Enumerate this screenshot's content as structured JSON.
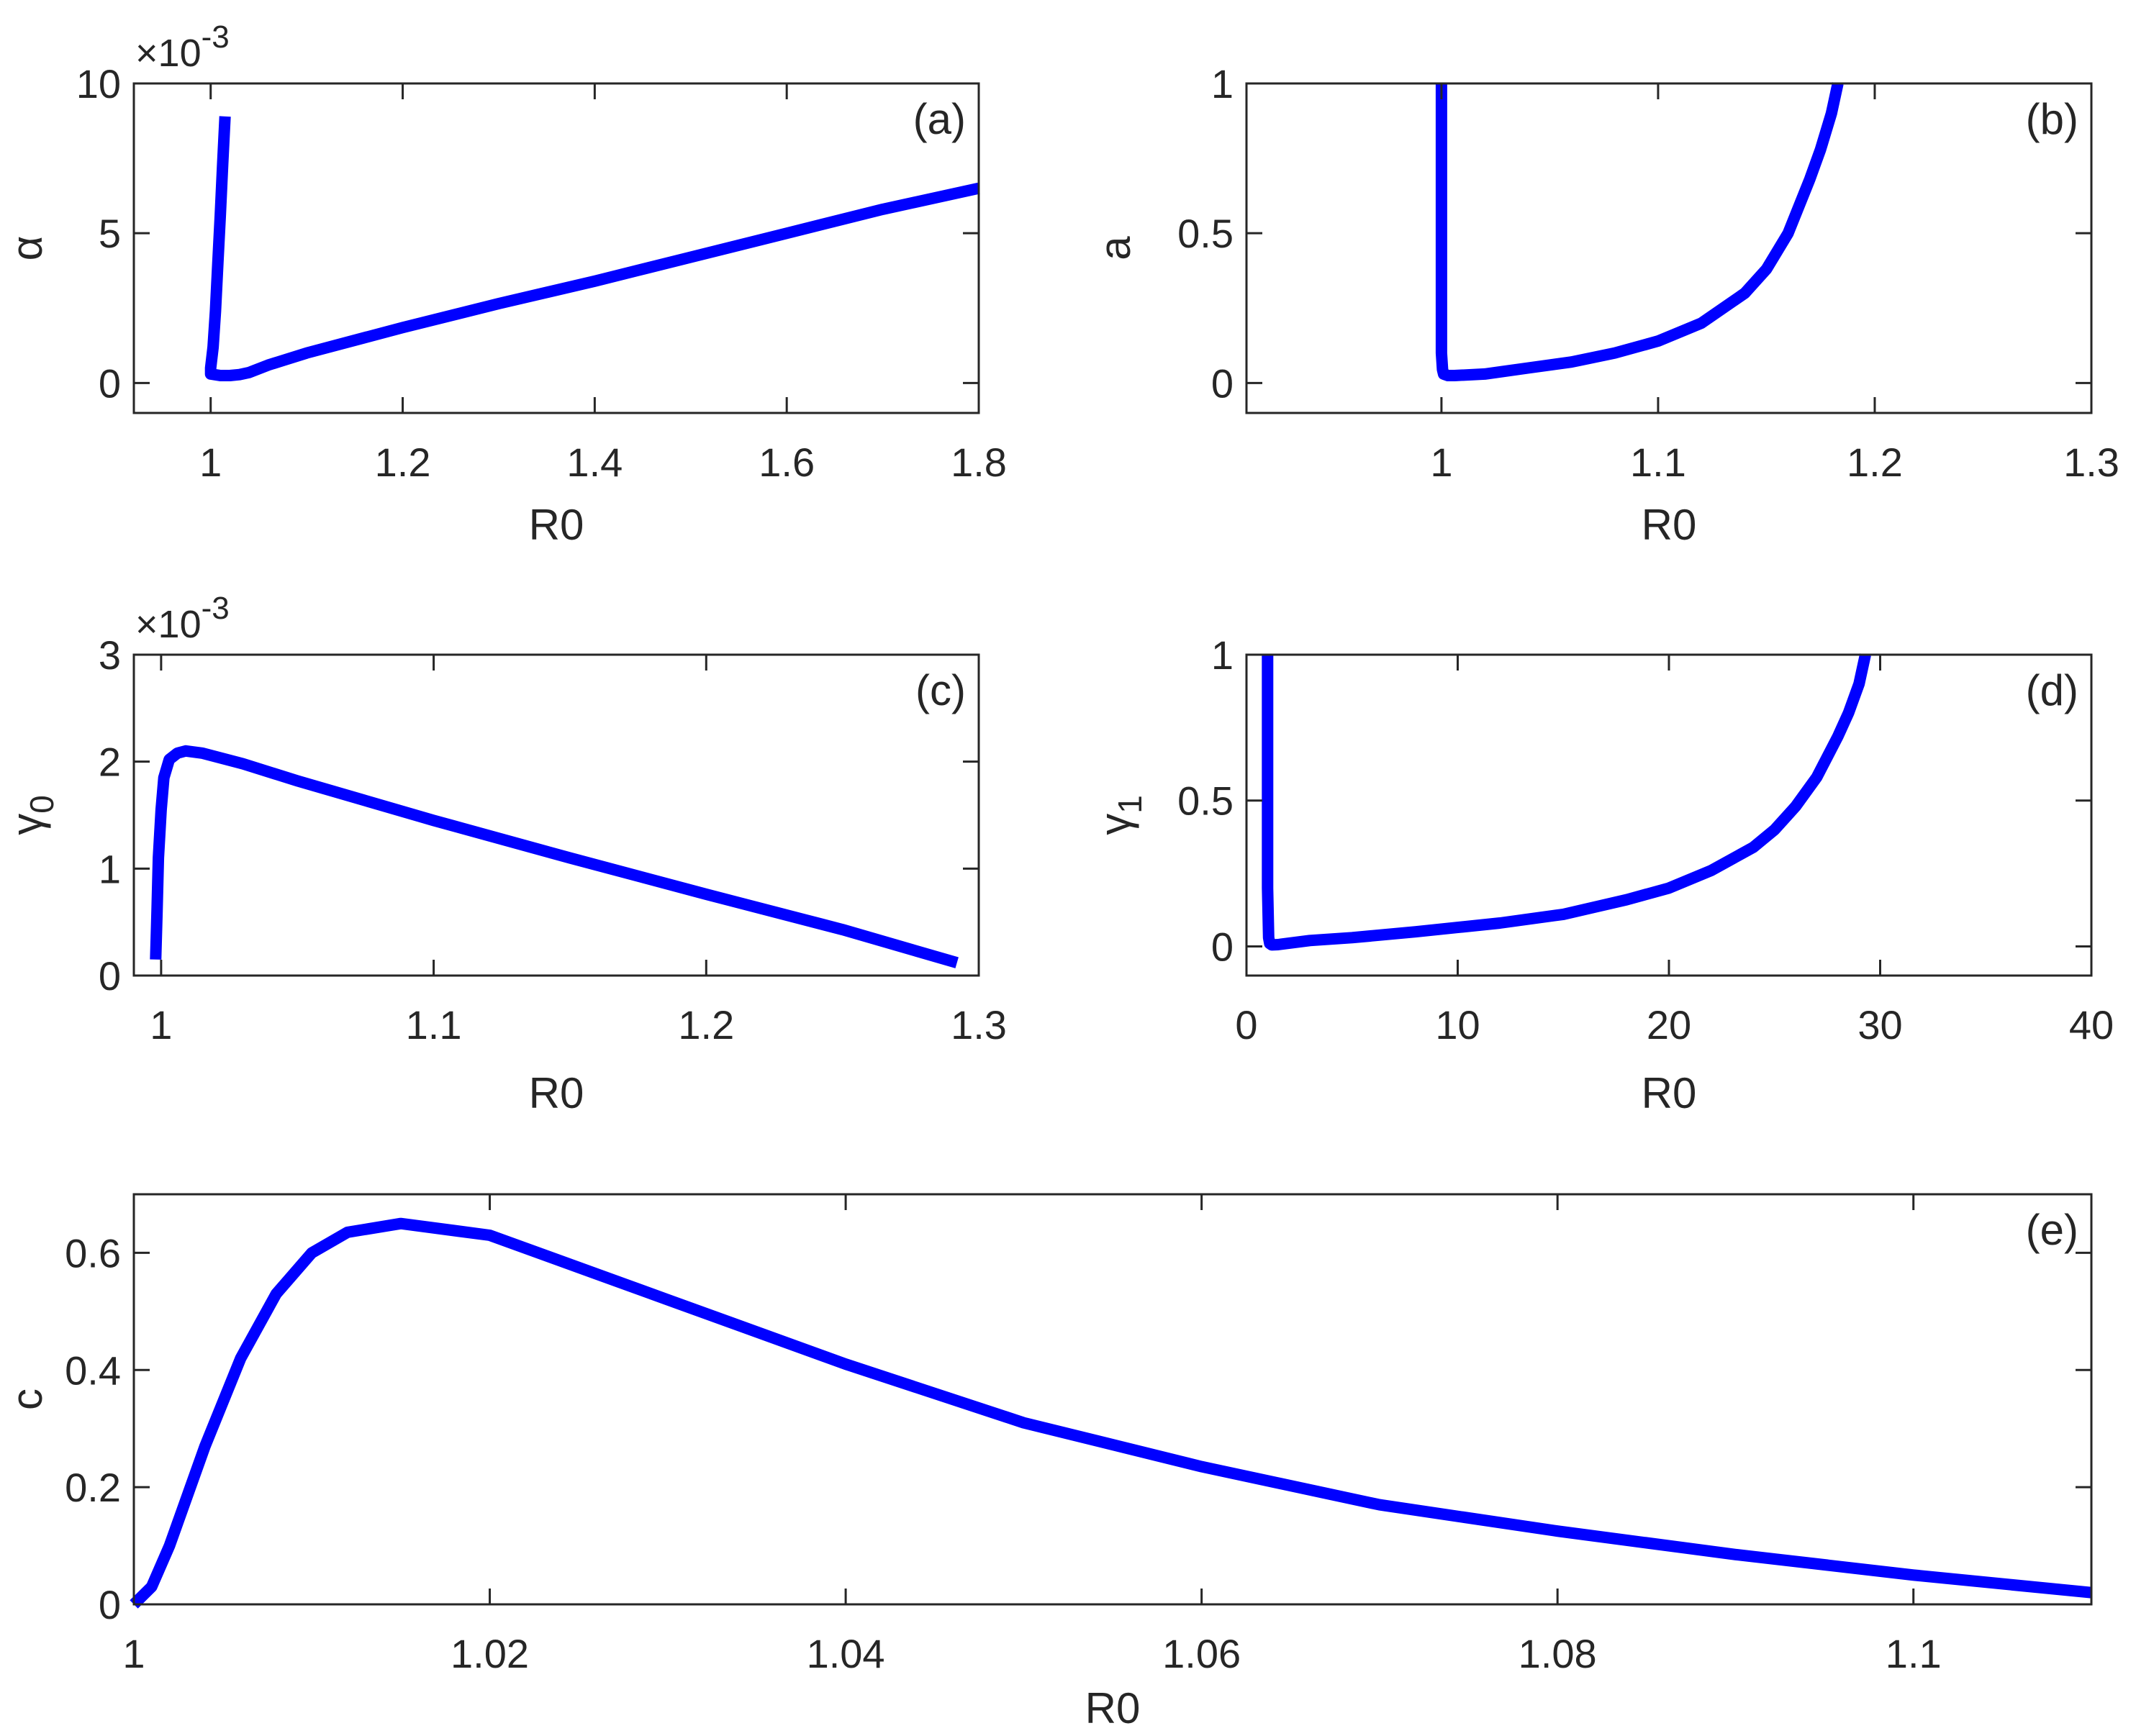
{
  "chart_data": [
    {
      "id": "a",
      "type": "line",
      "panel_label": "(a)",
      "xlabel": "R0",
      "ylabel": "α",
      "ylabel_sub": "",
      "y_exponent_label": "×10",
      "y_exponent_power": "-3",
      "xlim": [
        0.92,
        1.8
      ],
      "ylim": [
        -1,
        10
      ],
      "xticks": [
        1,
        1.2,
        1.4,
        1.6,
        1.8
      ],
      "xtick_labels": [
        "1",
        "1.2",
        "1.4",
        "1.6",
        "1.8"
      ],
      "yticks": [
        0,
        5,
        10
      ],
      "ytick_labels": [
        "0",
        "5",
        "10"
      ],
      "series": [
        {
          "x": [
            1.015,
            1.0125,
            1.01,
            1.0075,
            1.005,
            1.0025,
            1.0,
            1.0,
            1.01,
            1.02,
            1.03,
            1.04,
            1.06,
            1.1,
            1.2,
            1.3,
            1.4,
            1.5,
            1.6,
            1.7,
            1.8
          ],
          "y": [
            8.9,
            7.3,
            5.6,
            4.0,
            2.4,
            1.2,
            0.5,
            0.3,
            0.25,
            0.25,
            0.28,
            0.35,
            0.6,
            1.0,
            1.85,
            2.65,
            3.4,
            4.2,
            5.0,
            5.8,
            6.5
          ]
        }
      ]
    },
    {
      "id": "b",
      "type": "line",
      "panel_label": "(b)",
      "xlabel": "R0",
      "ylabel": "a",
      "ylabel_sub": "",
      "y_exponent_label": "",
      "y_exponent_power": "",
      "xlim": [
        0.91,
        1.3
      ],
      "ylim": [
        -0.1,
        1
      ],
      "xticks": [
        1,
        1.1,
        1.2,
        1.3
      ],
      "xtick_labels": [
        "1",
        "1.1",
        "1.2",
        "1.3"
      ],
      "yticks": [
        0,
        0.5,
        1
      ],
      "ytick_labels": [
        "0",
        "0.5",
        "1"
      ],
      "series": [
        {
          "x": [
            1.0,
            1.0,
            1.0,
            1.0,
            1.0005,
            1.001,
            1.003,
            1.006,
            1.02,
            1.04,
            1.06,
            1.08,
            1.1,
            1.12,
            1.14,
            1.15,
            1.16,
            1.17,
            1.175,
            1.18,
            1.183
          ],
          "y": [
            1.0,
            0.7,
            0.4,
            0.1,
            0.045,
            0.03,
            0.025,
            0.025,
            0.03,
            0.05,
            0.07,
            0.1,
            0.14,
            0.2,
            0.3,
            0.38,
            0.5,
            0.68,
            0.78,
            0.9,
            1.0
          ]
        }
      ]
    },
    {
      "id": "c",
      "type": "line",
      "panel_label": "(c)",
      "xlabel": "R0",
      "ylabel": "γ",
      "ylabel_sub": "0",
      "y_exponent_label": "×10",
      "y_exponent_power": "-3",
      "xlim": [
        0.99,
        1.3
      ],
      "ylim": [
        0,
        3
      ],
      "xticks": [
        1,
        1.1,
        1.2,
        1.3
      ],
      "xtick_labels": [
        "1",
        "1.1",
        "1.2",
        "1.3"
      ],
      "yticks": [
        0,
        1,
        2,
        3
      ],
      "ytick_labels": [
        "0",
        "1",
        "2",
        "3"
      ],
      "series": [
        {
          "x": [
            0.998,
            0.9985,
            0.999,
            1.0,
            1.001,
            1.003,
            1.006,
            1.009,
            1.015,
            1.03,
            1.05,
            1.1,
            1.15,
            1.2,
            1.25,
            1.292
          ],
          "y": [
            0.15,
            0.6,
            1.1,
            1.55,
            1.85,
            2.02,
            2.08,
            2.1,
            2.08,
            1.98,
            1.82,
            1.45,
            1.1,
            0.76,
            0.43,
            0.12
          ]
        }
      ]
    },
    {
      "id": "d",
      "type": "line",
      "panel_label": "(d)",
      "xlabel": "R0",
      "ylabel": "γ",
      "ylabel_sub": "1",
      "y_exponent_label": "",
      "y_exponent_power": "",
      "xlim": [
        0,
        40
      ],
      "ylim": [
        -0.1,
        1
      ],
      "xticks": [
        0,
        10,
        20,
        30,
        40
      ],
      "xtick_labels": [
        "0",
        "10",
        "20",
        "30",
        "40"
      ],
      "yticks": [
        0,
        0.5,
        1
      ],
      "ytick_labels": [
        "0",
        "0.5",
        "1"
      ],
      "series": [
        {
          "x": [
            1.0,
            1.0,
            1.0,
            1.05,
            1.1,
            1.2,
            1.5,
            3,
            5,
            8,
            10,
            12,
            15,
            18,
            20,
            22,
            24,
            25,
            26,
            27,
            28,
            28.5,
            29,
            29.3
          ],
          "y": [
            1.0,
            0.6,
            0.2,
            0.03,
            0.01,
            0.005,
            0.006,
            0.02,
            0.03,
            0.05,
            0.065,
            0.08,
            0.11,
            0.16,
            0.2,
            0.26,
            0.34,
            0.4,
            0.48,
            0.58,
            0.72,
            0.8,
            0.9,
            1.0
          ]
        }
      ]
    },
    {
      "id": "e",
      "type": "line",
      "panel_label": "(e)",
      "xlabel": "R0",
      "ylabel": "c",
      "ylabel_sub": "",
      "y_exponent_label": "",
      "y_exponent_power": "",
      "xlim": [
        1,
        1.11
      ],
      "ylim": [
        0,
        0.7
      ],
      "xticks": [
        1,
        1.02,
        1.04,
        1.06,
        1.08,
        1.1
      ],
      "xtick_labels": [
        "1",
        "1.02",
        "1.04",
        "1.06",
        "1.08",
        "1.1"
      ],
      "yticks": [
        0,
        0.2,
        0.4,
        0.6
      ],
      "ytick_labels": [
        "0",
        "0.2",
        "0.4",
        "0.6"
      ],
      "series": [
        {
          "x": [
            1.0,
            1.001,
            1.002,
            1.004,
            1.006,
            1.008,
            1.01,
            1.012,
            1.015,
            1.02,
            1.03,
            1.04,
            1.05,
            1.06,
            1.07,
            1.08,
            1.09,
            1.1,
            1.11
          ],
          "y": [
            0.0,
            0.03,
            0.1,
            0.27,
            0.42,
            0.53,
            0.6,
            0.635,
            0.65,
            0.63,
            0.52,
            0.41,
            0.31,
            0.235,
            0.17,
            0.125,
            0.085,
            0.05,
            0.02
          ]
        }
      ]
    }
  ]
}
